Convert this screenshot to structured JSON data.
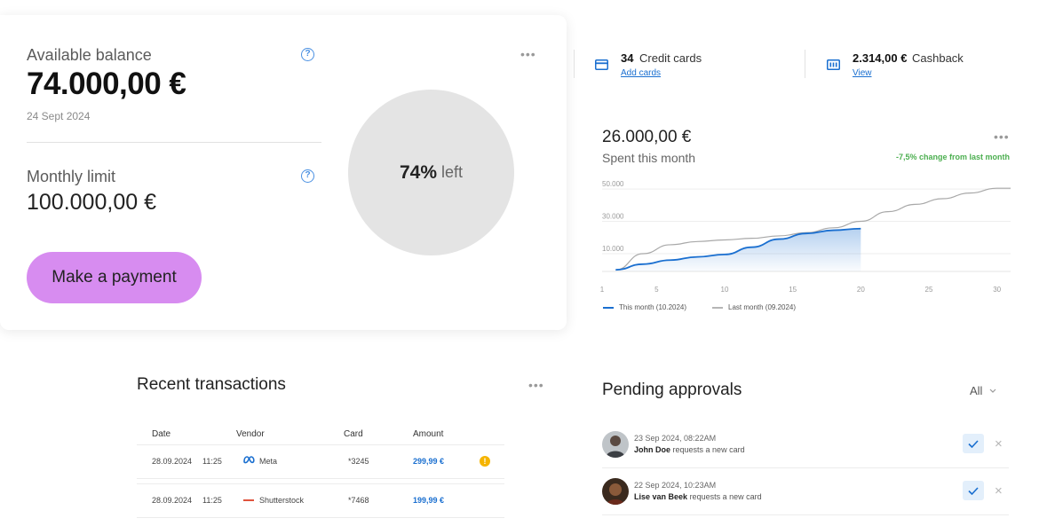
{
  "balance": {
    "available_label": "Available balance",
    "available_amount": "74.000,00 €",
    "date": "24 Sept 2024",
    "limit_label": "Monthly limit",
    "limit_amount": "100.000,00 €",
    "payment_button": "Make a payment",
    "remaining_pct": "74%",
    "remaining_suffix": "left",
    "remaining_fraction": 0.74
  },
  "stats": {
    "cards_count": "34",
    "cards_label": "Credit cards",
    "cards_link": "Add cards",
    "cashback_amount": "2.314,00 €",
    "cashback_label": "Cashback",
    "cashback_link": "View"
  },
  "spend": {
    "amount": "26.000,00 €",
    "label": "Spent this month",
    "change": "-7,5% change from last month"
  },
  "chart_data": {
    "type": "line",
    "ytick_labels": [
      "50.000",
      "30.000",
      "10.000"
    ],
    "xtick_labels": [
      "1",
      "5",
      "10",
      "15",
      "20",
      "25",
      "30"
    ],
    "xlim": [
      1,
      31
    ],
    "ylim": [
      -1000,
      55000
    ],
    "grid": true,
    "legend_position": "bottom-left",
    "series": [
      {
        "name": "This month (10.2024)",
        "color": "#1a6fd0",
        "x": [
          2,
          4,
          6,
          8,
          10,
          12,
          14,
          16,
          18,
          20
        ],
        "values": [
          0,
          3500,
          6000,
          8000,
          9500,
          14000,
          19000,
          22500,
          24500,
          25500
        ]
      },
      {
        "name": "Last month (09.2024)",
        "color": "#a8a8a8",
        "x": [
          2,
          4,
          6,
          8,
          10,
          12,
          14,
          16,
          18,
          20,
          22,
          24,
          26,
          28,
          30,
          31
        ],
        "values": [
          0,
          10000,
          15500,
          17500,
          18500,
          19500,
          21000,
          23000,
          26000,
          30000,
          36000,
          40500,
          44000,
          47500,
          50500,
          50500
        ]
      }
    ]
  },
  "transactions": {
    "title": "Recent transactions",
    "columns": [
      "Date",
      "Vendor",
      "Card",
      "Amount"
    ],
    "rows": [
      {
        "date": "28.09.2024",
        "time": "11:25",
        "vendor": "Meta",
        "card": "*3245",
        "amount": "299,99 €",
        "alert": "!"
      },
      {
        "date": "28.09.2024",
        "time": "11:25",
        "vendor": "Shutterstock",
        "card": "*7468",
        "amount": "199,99 €",
        "alert": ""
      }
    ]
  },
  "approvals": {
    "title": "Pending approvals",
    "filter": "All",
    "items": [
      {
        "date": "23 Sep 2024, 08:22AM",
        "name": "John Doe",
        "action": "requests a new card"
      },
      {
        "date": "22 Sep 2024, 10:23AM",
        "name": "Lise van Beek",
        "action": "requests a new card"
      }
    ]
  },
  "colors": {
    "accent": "#1a6fd0",
    "button": "#d78cf0",
    "positive": "#4caf50",
    "warning": "#f5b400"
  }
}
